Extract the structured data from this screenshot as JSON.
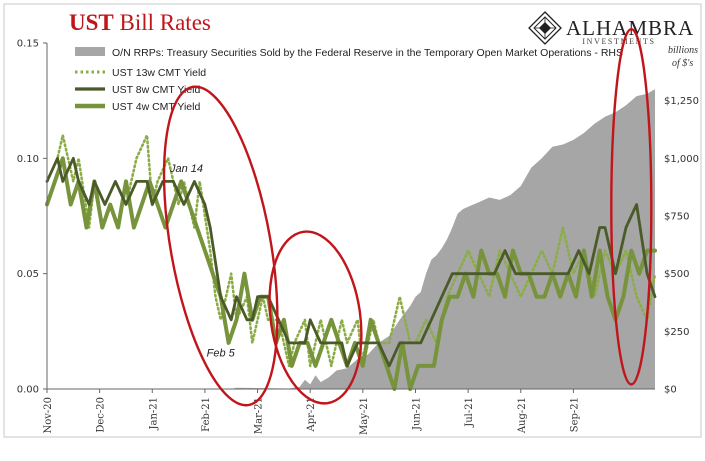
{
  "chart_data": {
    "type": "line",
    "title": {
      "accent": "UST",
      "rest": " Bill Rates"
    },
    "logo": {
      "name": "ALHAMBRA",
      "sub": "INVESTMENTS"
    },
    "y_left": {
      "ticks": [
        "0.00",
        "0.05",
        "0.10",
        "0.15"
      ],
      "values": [
        0,
        0.05,
        0.1,
        0.15
      ],
      "ylim": [
        0,
        0.15
      ]
    },
    "y_right": {
      "ticks": [
        "$0",
        "$250",
        "$500",
        "$750",
        "$1,000",
        "$1,250"
      ],
      "values": [
        0,
        250,
        500,
        750,
        1000,
        1250
      ],
      "ylim": [
        0,
        1500
      ],
      "label": [
        "billions",
        "of $'s"
      ]
    },
    "x_ticks": [
      "Nov-20",
      "Dec-20",
      "Jan-21",
      "Feb-21",
      "Mar-21",
      "Apr-21",
      "May-21",
      "Jun-21",
      "Jul-21",
      "Aug-21",
      "Sep-21"
    ],
    "x_span": {
      "start_index": 0,
      "end_index": 11.55
    },
    "legend_position": "top",
    "series": [
      {
        "name": "O/N RRPs: Treasury Securities Sold by the Federal Reserve in the Temporary Open Market Operations - RHS",
        "kind": "area",
        "axis": "right",
        "color": "#a6a6a6",
        "x": [
          0,
          3.5,
          3.6,
          4.6,
          4.8,
          4.9,
          5.0,
          5.1,
          5.2,
          5.35,
          5.5,
          5.7,
          5.9,
          6.1,
          6.3,
          6.5,
          6.7,
          6.9,
          7.0,
          7.1,
          7.2,
          7.3,
          7.4,
          7.5,
          7.6,
          7.7,
          7.8,
          7.9,
          8.0,
          8.2,
          8.4,
          8.6,
          8.8,
          9.0,
          9.2,
          9.4,
          9.6,
          9.8,
          10.0,
          10.2,
          10.4,
          10.6,
          10.8,
          11.0,
          11.2,
          11.4,
          11.55
        ],
        "values": [
          0,
          0,
          5,
          2,
          10,
          40,
          20,
          60,
          30,
          50,
          80,
          90,
          130,
          150,
          200,
          230,
          300,
          360,
          400,
          420,
          500,
          560,
          580,
          610,
          650,
          700,
          760,
          780,
          790,
          810,
          830,
          820,
          840,
          880,
          960,
          1000,
          1050,
          1060,
          1080,
          1110,
          1150,
          1180,
          1200,
          1230,
          1270,
          1280,
          1300
        ]
      },
      {
        "name": "UST 13w CMT Yield",
        "kind": "dotted",
        "axis": "left",
        "color": "#8bac46",
        "x": [
          0,
          0.2,
          0.3,
          0.5,
          0.6,
          0.8,
          0.9,
          1.1,
          1.3,
          1.5,
          1.7,
          1.9,
          2.0,
          2.1,
          2.3,
          2.5,
          2.6,
          2.8,
          2.9,
          3.1,
          3.2,
          3.3,
          3.5,
          3.6,
          3.8,
          3.9,
          4.1,
          4.2,
          4.4,
          4.6,
          4.7,
          4.9,
          5.0,
          5.2,
          5.4,
          5.6,
          5.7,
          5.9,
          6.0,
          6.2,
          6.3,
          6.5,
          6.7,
          6.9,
          7.0,
          7.2,
          7.4,
          7.6,
          7.8,
          8.0,
          8.2,
          8.4,
          8.6,
          8.8,
          9.0,
          9.2,
          9.4,
          9.6,
          9.8,
          10.0,
          10.2,
          10.4,
          10.6,
          10.8,
          11.0,
          11.2,
          11.4,
          11.55
        ],
        "values": [
          0.09,
          0.1,
          0.11,
          0.09,
          0.1,
          0.07,
          0.09,
          0.08,
          0.09,
          0.08,
          0.1,
          0.11,
          0.08,
          0.09,
          0.1,
          0.08,
          0.09,
          0.07,
          0.09,
          0.06,
          0.04,
          0.03,
          0.05,
          0.03,
          0.04,
          0.02,
          0.04,
          0.03,
          0.03,
          0.01,
          0.02,
          0.03,
          0.01,
          0.03,
          0.01,
          0.03,
          0.02,
          0.03,
          0.01,
          0.03,
          0.02,
          0.02,
          0.04,
          0.02,
          0.02,
          0.03,
          0.02,
          0.04,
          0.05,
          0.06,
          0.05,
          0.04,
          0.06,
          0.05,
          0.04,
          0.05,
          0.06,
          0.05,
          0.07,
          0.05,
          0.06,
          0.04,
          0.06,
          0.05,
          0.06,
          0.04,
          0.03,
          0.05
        ]
      },
      {
        "name": "UST 8w CMT Yield",
        "kind": "line",
        "axis": "left",
        "color": "#4a5a28",
        "x": [
          0,
          0.2,
          0.3,
          0.5,
          0.6,
          0.8,
          0.9,
          1.1,
          1.3,
          1.5,
          1.7,
          1.9,
          2.0,
          2.2,
          2.4,
          2.6,
          2.8,
          3.0,
          3.1,
          3.3,
          3.5,
          3.6,
          3.8,
          3.9,
          4.0,
          4.2,
          4.4,
          4.6,
          4.7,
          4.9,
          5.0,
          5.2,
          5.4,
          5.6,
          5.7,
          5.9,
          6.1,
          6.3,
          6.5,
          6.7,
          6.9,
          7.1,
          7.3,
          7.5,
          7.7,
          7.9,
          8.1,
          8.3,
          8.5,
          8.7,
          8.9,
          9.1,
          9.3,
          9.5,
          9.7,
          9.9,
          10.1,
          10.3,
          10.5,
          10.6,
          10.8,
          11.0,
          11.2,
          11.4,
          11.55
        ],
        "values": [
          0.09,
          0.1,
          0.09,
          0.1,
          0.09,
          0.08,
          0.09,
          0.08,
          0.09,
          0.08,
          0.09,
          0.09,
          0.08,
          0.09,
          0.09,
          0.08,
          0.09,
          0.08,
          0.07,
          0.04,
          0.03,
          0.04,
          0.03,
          0.03,
          0.04,
          0.04,
          0.03,
          0.02,
          0.02,
          0.02,
          0.03,
          0.02,
          0.02,
          0.02,
          0.01,
          0.02,
          0.02,
          0.02,
          0.01,
          0.02,
          0.02,
          0.02,
          0.03,
          0.04,
          0.05,
          0.05,
          0.05,
          0.05,
          0.05,
          0.06,
          0.05,
          0.05,
          0.05,
          0.05,
          0.05,
          0.05,
          0.06,
          0.05,
          0.07,
          0.07,
          0.05,
          0.07,
          0.08,
          0.05,
          0.04
        ]
      },
      {
        "name": "UST 4w CMT Yield",
        "kind": "thick",
        "axis": "left",
        "color": "#77933c",
        "x": [
          0,
          0.15,
          0.3,
          0.45,
          0.6,
          0.75,
          0.9,
          1.05,
          1.2,
          1.35,
          1.5,
          1.65,
          1.8,
          1.95,
          2.1,
          2.25,
          2.4,
          2.55,
          2.7,
          2.85,
          3.0,
          3.15,
          3.3,
          3.45,
          3.6,
          3.75,
          3.9,
          4.05,
          4.2,
          4.35,
          4.5,
          4.65,
          4.8,
          4.95,
          5.1,
          5.25,
          5.4,
          5.55,
          5.7,
          5.85,
          6.0,
          6.15,
          6.3,
          6.45,
          6.6,
          6.75,
          6.9,
          7.05,
          7.2,
          7.35,
          7.5,
          7.65,
          7.8,
          7.95,
          8.1,
          8.25,
          8.4,
          8.55,
          8.7,
          8.85,
          9.0,
          9.15,
          9.3,
          9.45,
          9.6,
          9.75,
          9.9,
          10.05,
          10.2,
          10.35,
          10.5,
          10.65,
          10.8,
          10.95,
          11.1,
          11.25,
          11.4,
          11.55
        ],
        "values": [
          0.08,
          0.09,
          0.1,
          0.08,
          0.09,
          0.07,
          0.09,
          0.07,
          0.08,
          0.07,
          0.09,
          0.07,
          0.08,
          0.09,
          0.08,
          0.07,
          0.08,
          0.09,
          0.08,
          0.07,
          0.06,
          0.05,
          0.04,
          0.02,
          0.03,
          0.05,
          0.03,
          0.04,
          0.04,
          0.02,
          0.03,
          0.01,
          0.02,
          0.02,
          0.01,
          0.02,
          0.03,
          0.02,
          0.01,
          0.02,
          0.01,
          0.03,
          0.02,
          0.01,
          0.0,
          0.02,
          0.0,
          0.01,
          0.01,
          0.01,
          0.03,
          0.04,
          0.04,
          0.05,
          0.04,
          0.06,
          0.05,
          0.05,
          0.04,
          0.06,
          0.05,
          0.05,
          0.04,
          0.04,
          0.05,
          0.04,
          0.05,
          0.04,
          0.06,
          0.04,
          0.06,
          0.04,
          0.03,
          0.04,
          0.06,
          0.05,
          0.06,
          0.06
        ]
      }
    ],
    "annotations": [
      {
        "text": "Jan 14",
        "x": 2.65,
        "y": 0.094
      },
      {
        "text": "Feb 5",
        "x": 3.3,
        "y": 0.014
      }
    ],
    "highlights": [
      {
        "x_center": 3.3,
        "y_center": 0.062,
        "x_radius": 0.95,
        "y_radius": 0.07,
        "tilt": -10
      },
      {
        "x_center": 5.1,
        "y_center": 0.031,
        "x_radius": 0.85,
        "y_radius": 0.0375,
        "tilt": -8
      },
      {
        "x_center": 11.1,
        "y_center": 0.079,
        "x_radius": 0.38,
        "y_radius": 0.077,
        "tilt": 0
      }
    ]
  }
}
